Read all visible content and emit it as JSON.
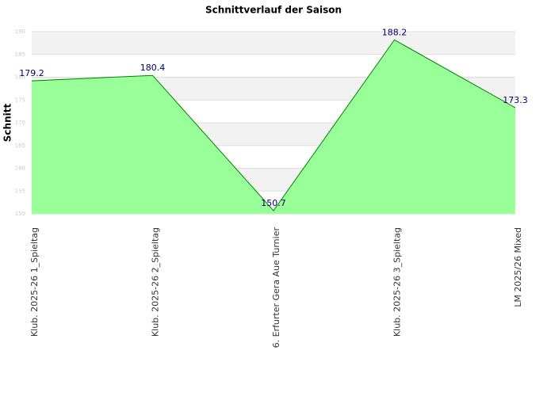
{
  "chart_data": {
    "type": "area",
    "title": "Schnittverlauf der Saison",
    "y_label": "Schnitt",
    "categories": [
      "Klub. 2025-26  1_Spieltag",
      "Klub. 2025-26  2_Spieltag",
      "6. Erfurter Gera Aue Turnier",
      "Klub. 2025-26  3_Spieltag",
      "LM 2025/26 Mixed"
    ],
    "values": [
      179.2,
      180.4,
      150.7,
      188.2,
      173.3
    ],
    "color": "#99ff99",
    "line_color": "#008000",
    "ylim": [
      150,
      190
    ],
    "yticks": [
      150,
      155,
      160,
      165,
      170,
      175,
      180,
      185,
      190
    ],
    "grid": true
  }
}
